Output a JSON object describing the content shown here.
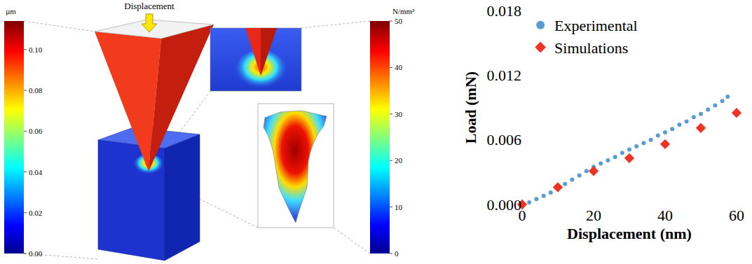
{
  "diagram": {
    "label": "Displacement",
    "colorbars": [
      {
        "title": "µm",
        "range": [
          0,
          0.114
        ],
        "ticks": [
          {
            "value": 0,
            "label": "0.00"
          },
          {
            "value": 0.02,
            "label": "0.02"
          },
          {
            "value": 0.04,
            "label": "0.04"
          },
          {
            "value": 0.06,
            "label": "0.06"
          },
          {
            "value": 0.08,
            "label": "0.08"
          },
          {
            "value": 0.1,
            "label": "0.10"
          }
        ]
      },
      {
        "title": "N/mm²",
        "range": [
          0,
          50
        ],
        "ticks": [
          0,
          10,
          20,
          30,
          40,
          50
        ]
      }
    ]
  },
  "chart_data": {
    "type": "scatter",
    "x_label": "Displacement (nm)",
    "y_label": "Load (mN)",
    "xlim": [
      0,
      60
    ],
    "xticks": [
      0,
      20,
      40,
      60
    ],
    "ylim": [
      0,
      0.018
    ],
    "yticks": [
      {
        "value": 0,
        "label": "0.000"
      },
      {
        "value": 0.006,
        "label": "0.006"
      },
      {
        "value": 0.012,
        "label": "0.012"
      },
      {
        "value": 0.018,
        "label": "0.018"
      }
    ],
    "grid": false,
    "legend": "top-left",
    "series": [
      {
        "name": "Experimental",
        "color": "#5b9bd5",
        "marker": "circle",
        "x": [
          2,
          4,
          6,
          8,
          10,
          12,
          14,
          16,
          18,
          20,
          22,
          24,
          26,
          28,
          30,
          32,
          34,
          36,
          38,
          40,
          42,
          44,
          46,
          48,
          50,
          52,
          54,
          56,
          57.5
        ],
        "values": [
          0.0002,
          0.0005,
          0.0008,
          0.0011,
          0.0015,
          0.0019,
          0.0023,
          0.0027,
          0.0031,
          0.0035,
          0.0038,
          0.0041,
          0.0044,
          0.0048,
          0.0051,
          0.0054,
          0.0057,
          0.006,
          0.0064,
          0.0067,
          0.007,
          0.0074,
          0.0077,
          0.0081,
          0.0084,
          0.0088,
          0.0092,
          0.0096,
          0.01
        ]
      },
      {
        "name": "Simulations",
        "color": "#ee3322",
        "marker": "diamond",
        "x": [
          0,
          10,
          20,
          30,
          40,
          50,
          60
        ],
        "values": [
          0,
          0.0016,
          0.0031,
          0.0043,
          0.0056,
          0.0071,
          0.0085
        ]
      }
    ]
  }
}
